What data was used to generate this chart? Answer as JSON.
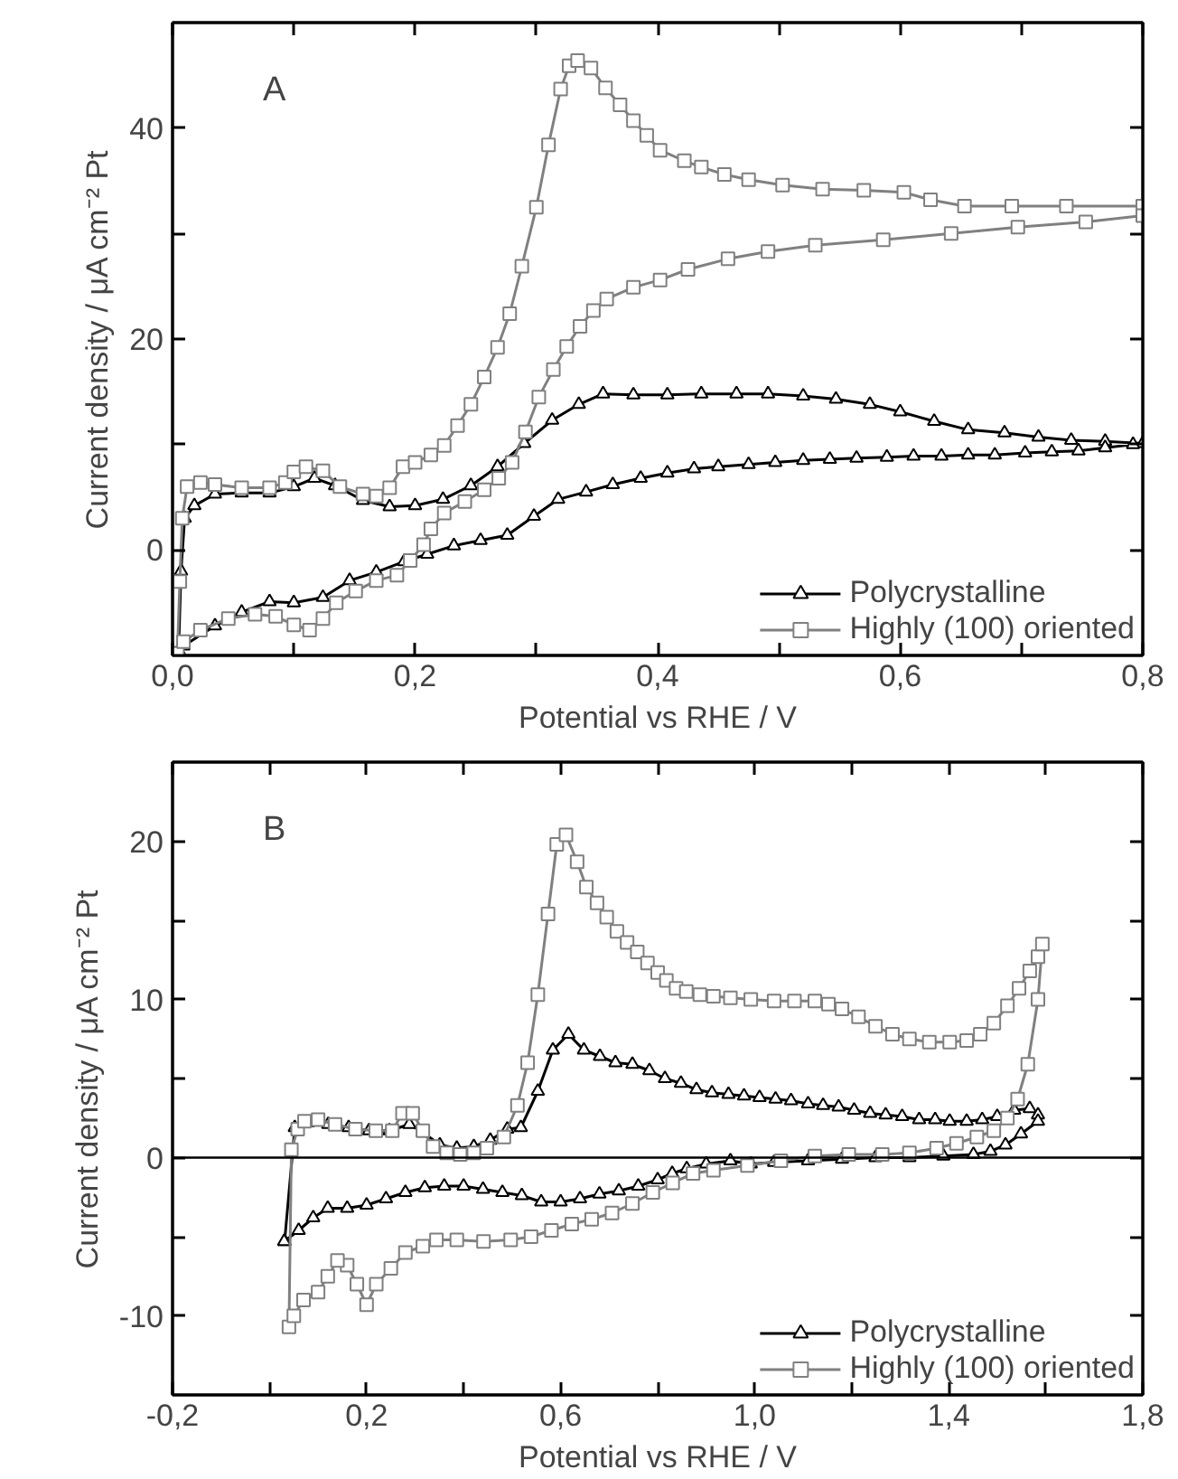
{
  "chart_data": [
    {
      "type": "line",
      "annotations": [
        "A"
      ],
      "xlabel": "Potential vs RHE / V",
      "ylabel": "Current density / μA cm⁻² Pt",
      "xlim": [
        0,
        0.8
      ],
      "xticks": [
        {
          "value": 0,
          "label": "0,0"
        },
        {
          "value": 0.1,
          "label": null
        },
        {
          "value": 0.2,
          "label": "0,2"
        },
        {
          "value": 0.3,
          "label": null
        },
        {
          "value": 0.4,
          "label": "0,4"
        },
        {
          "value": 0.5,
          "label": null
        },
        {
          "value": 0.6,
          "label": "0,6"
        },
        {
          "value": 0.7,
          "label": null
        },
        {
          "value": 0.8,
          "label": "0,8"
        }
      ],
      "ylim": [
        -10,
        50
      ],
      "yticks": [
        0,
        {
          "value": 10,
          "label": null
        },
        20,
        {
          "value": 30,
          "label": null
        },
        40
      ],
      "grid": false,
      "legend": "bottom right",
      "line_style": "solid",
      "series": [
        {
          "name": "Polycrystalline",
          "color": "#000000",
          "marker": "triangle",
          "x": [
            0.005,
            0.007,
            0.01,
            0.018,
            0.035,
            0.057,
            0.08,
            0.1,
            0.117,
            0.134,
            0.157,
            0.179,
            0.2,
            0.223,
            0.246,
            0.268,
            0.29,
            0.313,
            0.335,
            0.355,
            0.38,
            0.408,
            0.436,
            0.465,
            0.491,
            0.52,
            0.547,
            0.575,
            0.6,
            0.628,
            0.656,
            0.686,
            0.714,
            0.741,
            0.769,
            0.8,
            0.792,
            0.769,
            0.747,
            0.725,
            0.703,
            0.678,
            0.656,
            0.634,
            0.611,
            0.589,
            0.564,
            0.542,
            0.52,
            0.497,
            0.475,
            0.45,
            0.43,
            0.408,
            0.386,
            0.363,
            0.341,
            0.318,
            0.298,
            0.276,
            0.254,
            0.232,
            0.21,
            0.191,
            0.168,
            0.146,
            0.124,
            0.1,
            0.08,
            0.057,
            0.035,
            0.009
          ],
          "values": [
            -9.5,
            -2,
            3,
            4.2,
            5.3,
            5.4,
            5.4,
            6.0,
            6.8,
            6.1,
            4.7,
            4.1,
            4.2,
            4.8,
            6.1,
            7.9,
            10.1,
            12.3,
            13.8,
            14.8,
            14.7,
            14.7,
            14.8,
            14.8,
            14.8,
            14.6,
            14.3,
            13.8,
            13.1,
            12.2,
            11.4,
            11.1,
            10.7,
            10.4,
            10.3,
            10.1,
            10.0,
            9.7,
            9.4,
            9.3,
            9.2,
            9.0,
            9.0,
            8.9,
            8.9,
            8.8,
            8.7,
            8.6,
            8.5,
            8.3,
            8.1,
            7.9,
            7.7,
            7.3,
            6.8,
            6.2,
            5.5,
            4.8,
            3.2,
            1.4,
            0.9,
            0.4,
            -0.4,
            -1.1,
            -2.1,
            -2.9,
            -4.5,
            -5.0,
            -4.9,
            -5.9,
            -7.2,
            -9.1
          ]
        },
        {
          "name": "Highly (100) oriented",
          "color": "#808080",
          "marker": "square",
          "x": [
            0.004,
            0.006,
            0.008,
            0.012,
            0.023,
            0.035,
            0.057,
            0.08,
            0.093,
            0.1,
            0.11,
            0.124,
            0.138,
            0.157,
            0.168,
            0.179,
            0.19,
            0.2,
            0.213,
            0.224,
            0.235,
            0.246,
            0.257,
            0.268,
            0.278,
            0.288,
            0.3,
            0.31,
            0.32,
            0.327,
            0.334,
            0.345,
            0.357,
            0.369,
            0.38,
            0.391,
            0.402,
            0.422,
            0.436,
            0.455,
            0.475,
            0.503,
            0.536,
            0.57,
            0.603,
            0.625,
            0.653,
            0.692,
            0.737,
            0.8,
            0.8,
            0.753,
            0.697,
            0.642,
            0.586,
            0.53,
            0.491,
            0.458,
            0.425,
            0.402,
            0.38,
            0.358,
            0.347,
            0.336,
            0.325,
            0.314,
            0.302,
            0.291,
            0.28,
            0.269,
            0.257,
            0.241,
            0.224,
            0.213,
            0.207,
            0.196,
            0.185,
            0.168,
            0.151,
            0.135,
            0.124,
            0.113,
            0.1,
            0.085,
            0.068,
            0.046,
            0.023,
            0.009
          ],
          "values": [
            -9.8,
            -3,
            3,
            6.0,
            6.4,
            6.2,
            5.9,
            5.9,
            6.4,
            7.4,
            7.9,
            7.5,
            6.0,
            5.3,
            5.1,
            5.9,
            7.9,
            8.3,
            9.0,
            9.9,
            11.8,
            13.8,
            16.4,
            19.2,
            22.4,
            26.9,
            32.5,
            38.4,
            43.7,
            45.9,
            46.4,
            45.7,
            43.8,
            42.2,
            40.7,
            39.3,
            37.9,
            36.9,
            36.3,
            35.6,
            35.1,
            34.6,
            34.2,
            34.1,
            33.9,
            33.2,
            32.6,
            32.6,
            32.6,
            32.6,
            31.7,
            31.1,
            30.6,
            30.0,
            29.4,
            28.9,
            28.3,
            27.6,
            26.6,
            25.6,
            24.9,
            23.8,
            22.7,
            21.2,
            19.3,
            17.1,
            14.5,
            11.2,
            8.3,
            6.8,
            5.7,
            4.6,
            3.5,
            2.0,
            0.5,
            -1.0,
            -2.4,
            -2.9,
            -3.9,
            -5.0,
            -6.5,
            -7.6,
            -7.1,
            -6.3,
            -6.1,
            -6.5,
            -7.6,
            -8.7
          ]
        }
      ]
    },
    {
      "type": "line",
      "annotations": [
        "B"
      ],
      "xlabel": "Potential vs RHE / V",
      "ylabel": "Current density / μA cm⁻² Pt",
      "xlim": [
        -0.2,
        1.8
      ],
      "xticks": [
        {
          "value": -0.2,
          "label": "-0,2"
        },
        {
          "value": 0,
          "label": null
        },
        {
          "value": 0.2,
          "label": "0,2"
        },
        {
          "value": 0.4,
          "label": null
        },
        {
          "value": 0.6,
          "label": "0,6"
        },
        {
          "value": 0.8,
          "label": null
        },
        {
          "value": 1.0,
          "label": "1,0"
        },
        {
          "value": 1.2,
          "label": null
        },
        {
          "value": 1.4,
          "label": "1,4"
        },
        {
          "value": 1.6,
          "label": null
        },
        {
          "value": 1.8,
          "label": "1,8"
        }
      ],
      "ylim": [
        -15,
        25
      ],
      "yticks": [
        -10,
        {
          "value": -5,
          "label": null
        },
        0,
        {
          "value": 5,
          "label": null
        },
        10,
        {
          "value": 15,
          "label": null
        },
        20
      ],
      "grid": false,
      "legend": "bottom right",
      "line_style": "solid",
      "ref_lines": [
        {
          "axis": "y",
          "value": 0,
          "color": "#000000"
        }
      ],
      "series": [
        {
          "name": "Polycrystalline",
          "color": "#000000",
          "marker": "triangle",
          "x": [
            0.031,
            0.052,
            0.079,
            0.121,
            0.163,
            0.205,
            0.247,
            0.288,
            0.316,
            0.351,
            0.386,
            0.421,
            0.455,
            0.49,
            0.518,
            0.553,
            0.584,
            0.616,
            0.648,
            0.681,
            0.713,
            0.748,
            0.783,
            0.815,
            0.848,
            0.88,
            0.912,
            0.946,
            0.978,
            1.01,
            1.043,
            1.075,
            1.11,
            1.141,
            1.173,
            1.205,
            1.238,
            1.27,
            1.304,
            1.339,
            1.372,
            1.402,
            1.437,
            1.469,
            1.5,
            1.535,
            1.567,
            1.584,
            1.584,
            1.549,
            1.517,
            1.486,
            1.451,
            1.389,
            1.319,
            1.249,
            1.18,
            1.11,
            1.04,
            0.992,
            0.95,
            0.9,
            0.86,
            0.83,
            0.8,
            0.76,
            0.72,
            0.68,
            0.64,
            0.6,
            0.56,
            0.52,
            0.48,
            0.44,
            0.4,
            0.36,
            0.32,
            0.28,
            0.24,
            0.2,
            0.16,
            0.12,
            0.09,
            0.06,
            0.03
          ],
          "values": [
            -5.3,
            1.9,
            2.2,
            2.1,
            1.9,
            1.7,
            1.7,
            2.1,
            1.6,
            0.8,
            0.6,
            0.7,
            1.1,
            1.8,
            1.9,
            4.2,
            6.8,
            7.8,
            6.8,
            6.4,
            6.0,
            5.9,
            5.5,
            5.0,
            4.7,
            4.3,
            4.1,
            4.0,
            3.9,
            3.8,
            3.7,
            3.6,
            3.4,
            3.3,
            3.2,
            3.0,
            2.8,
            2.7,
            2.6,
            2.4,
            2.4,
            2.3,
            2.3,
            2.4,
            2.6,
            3.0,
            3.1,
            2.7,
            2.3,
            1.5,
            0.8,
            0.4,
            0.2,
            0.1,
            0,
            0,
            -0.1,
            -0.2,
            -0.3,
            -0.4,
            -0.2,
            -0.4,
            -0.7,
            -1.0,
            -1.4,
            -1.8,
            -2.1,
            -2.3,
            -2.6,
            -2.8,
            -2.8,
            -2.4,
            -2.2,
            -2.0,
            -1.8,
            -1.8,
            -1.9,
            -2.2,
            -2.6,
            -3.0,
            -3.2,
            -3.2,
            -3.8,
            -4.6,
            -5.3
          ]
        },
        {
          "name": "Highly (100) oriented",
          "color": "#808080",
          "marker": "square",
          "x": [
            0.04,
            0.045,
            0.058,
            0.072,
            0.1,
            0.135,
            0.177,
            0.219,
            0.253,
            0.274,
            0.295,
            0.316,
            0.337,
            0.365,
            0.393,
            0.421,
            0.448,
            0.483,
            0.511,
            0.532,
            0.553,
            0.574,
            0.592,
            0.611,
            0.634,
            0.653,
            0.675,
            0.695,
            0.716,
            0.737,
            0.758,
            0.779,
            0.8,
            0.818,
            0.838,
            0.859,
            0.887,
            0.915,
            0.95,
            0.992,
            1.04,
            1.082,
            1.124,
            1.152,
            1.18,
            1.214,
            1.249,
            1.284,
            1.319,
            1.36,
            1.402,
            1.437,
            1.465,
            1.493,
            1.521,
            1.545,
            1.567,
            1.584,
            1.593,
            1.584,
            1.563,
            1.542,
            1.521,
            1.493,
            1.458,
            1.416,
            1.375,
            1.319,
            1.263,
            1.194,
            1.124,
            1.054,
            0.985,
            0.915,
            0.873,
            0.831,
            0.79,
            0.748,
            0.706,
            0.664,
            0.623,
            0.581,
            0.539,
            0.497,
            0.441,
            0.386,
            0.344,
            0.316,
            0.28,
            0.25,
            0.22,
            0.2,
            0.18,
            0.16,
            0.14,
            0.12,
            0.1,
            0.07,
            0.05
          ],
          "values": [
            -10.7,
            0.5,
            1.8,
            2.3,
            2.4,
            2.1,
            1.8,
            1.7,
            1.7,
            2.8,
            2.8,
            1.7,
            0.7,
            0.3,
            0.2,
            0.3,
            0.6,
            1.3,
            3.3,
            6.0,
            10.3,
            15.4,
            19.8,
            20.4,
            18.7,
            17.1,
            16.1,
            15.2,
            14.3,
            13.6,
            13.0,
            12.3,
            11.7,
            11.2,
            10.7,
            10.5,
            10.3,
            10.2,
            10.1,
            10.0,
            9.9,
            9.9,
            9.9,
            9.7,
            9.4,
            8.9,
            8.3,
            7.8,
            7.5,
            7.3,
            7.3,
            7.4,
            7.8,
            8.5,
            9.6,
            10.7,
            11.8,
            12.7,
            13.5,
            10.0,
            5.9,
            3.7,
            2.5,
            1.7,
            1.3,
            0.9,
            0.6,
            0.3,
            0.2,
            0.2,
            0.1,
            -0.2,
            -0.5,
            -0.8,
            -1.0,
            -1.6,
            -2.2,
            -2.9,
            -3.5,
            -3.9,
            -4.2,
            -4.6,
            -5.0,
            -5.2,
            -5.3,
            -5.2,
            -5.2,
            -5.6,
            -6.0,
            -7.0,
            -8.0,
            -9.3,
            -8.0,
            -6.8,
            -6.5,
            -7.5,
            -8.5,
            -9.0,
            -10.0
          ]
        }
      ]
    }
  ]
}
